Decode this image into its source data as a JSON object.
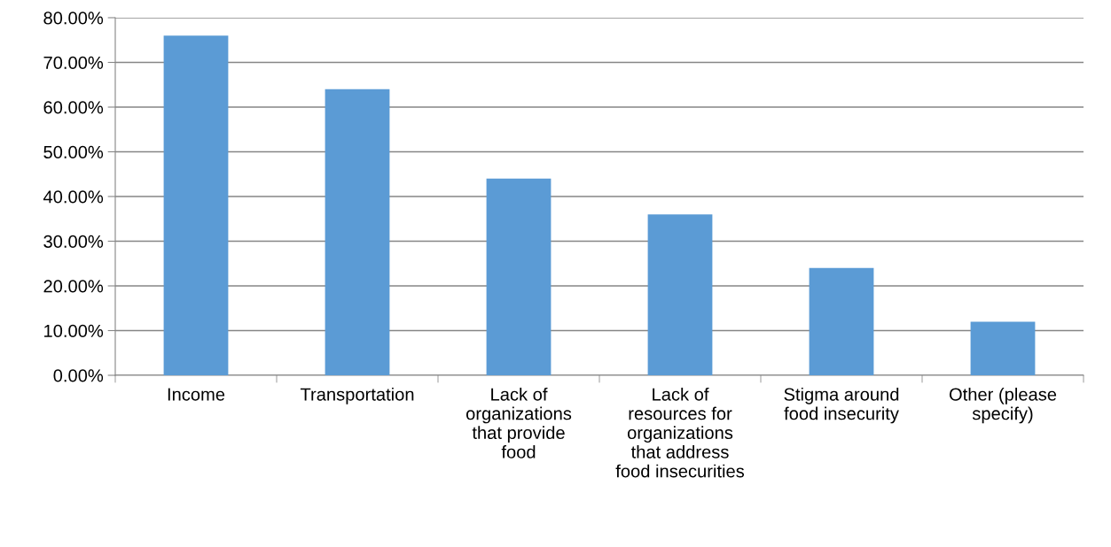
{
  "chart_data": {
    "type": "bar",
    "categories": [
      "Income",
      "Transportation",
      "Lack of\norganizations\nthat provide\nfood",
      "Lack of\nresources for\norganizations\nthat address\nfood insecurities",
      "Stigma around\nfood insecurity",
      "Other (please\nspecify)"
    ],
    "values": [
      76,
      64,
      44,
      36,
      24,
      12
    ],
    "color": "#5b9bd5",
    "ylim": [
      0,
      80
    ],
    "yticks": [
      {
        "value": 0,
        "label": "0.00%"
      },
      {
        "value": 10,
        "label": "10.00%"
      },
      {
        "value": 20,
        "label": "20.00%"
      },
      {
        "value": 30,
        "label": "30.00%"
      },
      {
        "value": 40,
        "label": "40.00%"
      },
      {
        "value": 50,
        "label": "50.00%"
      },
      {
        "value": 60,
        "label": "60.00%"
      },
      {
        "value": 70,
        "label": "70.00%"
      },
      {
        "value": 80,
        "label": "80.00%"
      }
    ],
    "grid": "y"
  }
}
